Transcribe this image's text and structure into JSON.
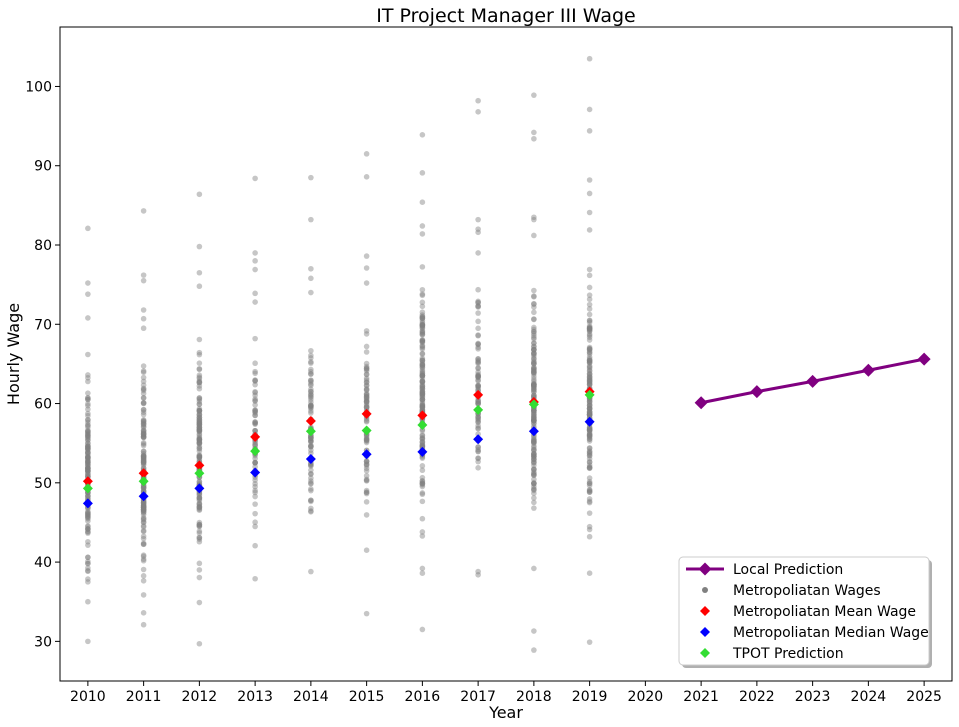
{
  "chart_data": {
    "type": "scatter",
    "title": "IT Project Manager III Wage",
    "xlabel": "Year",
    "ylabel": "Hourly Wage",
    "xlim": [
      2009.5,
      2025.5
    ],
    "ylim": [
      25,
      107.5
    ],
    "x_ticks": [
      2010,
      2011,
      2012,
      2013,
      2014,
      2015,
      2016,
      2017,
      2018,
      2019,
      2020,
      2021,
      2022,
      2023,
      2024,
      2025
    ],
    "y_ticks": [
      30,
      40,
      50,
      60,
      70,
      80,
      90,
      100
    ],
    "grid": false,
    "legend_position": "bottom-right",
    "colors": {
      "wages": "#808080",
      "mean": "#ff0000",
      "median": "#0000ff",
      "tpot": "#33dd33",
      "prediction": "#800080"
    },
    "series": [
      {
        "name": "Local Prediction",
        "style": "line-diamond",
        "x": [
          2021,
          2022,
          2023,
          2024,
          2025
        ],
        "y": [
          60.1,
          61.5,
          62.8,
          64.2,
          65.6
        ]
      },
      {
        "name": "Metropoliatan Wages",
        "style": "scatter-gray",
        "groups": [
          {
            "year": 2010,
            "min": 33.5,
            "max": 68.0,
            "count": 150,
            "outliers": [
              30.0,
              35.0,
              70.8,
              73.8,
              75.2,
              82.1
            ]
          },
          {
            "year": 2011,
            "min": 35.0,
            "max": 68.0,
            "count": 150,
            "outliers": [
              32.1,
              33.6,
              69.5,
              70.7,
              71.8,
              75.5,
              76.2,
              84.3
            ]
          },
          {
            "year": 2012,
            "min": 35.5,
            "max": 72.0,
            "count": 150,
            "outliers": [
              29.7,
              34.9,
              74.8,
              76.5,
              79.8,
              86.4
            ]
          },
          {
            "year": 2013,
            "min": 40.0,
            "max": 71.0,
            "count": 70,
            "outliers": [
              37.9,
              72.8,
              73.9,
              76.9,
              78.0,
              79.0,
              88.4
            ]
          },
          {
            "year": 2014,
            "min": 42.0,
            "max": 72.0,
            "count": 80,
            "outliers": [
              38.8,
              74.0,
              75.8,
              77.0,
              83.2,
              88.5
            ]
          },
          {
            "year": 2015,
            "min": 43.0,
            "max": 73.0,
            "count": 80,
            "outliers": [
              33.5,
              41.5,
              75.2,
              77.1,
              78.6,
              88.6,
              91.5
            ]
          },
          {
            "year": 2016,
            "min": 40.0,
            "max": 80.0,
            "count": 170,
            "outliers": [
              31.5,
              38.6,
              39.2,
              81.4,
              82.4,
              85.4,
              89.1,
              93.9
            ]
          },
          {
            "year": 2017,
            "min": 44.5,
            "max": 77.0,
            "count": 80,
            "outliers": [
              38.4,
              38.8,
              79.0,
              81.6,
              82.0,
              83.2,
              96.8,
              98.2
            ]
          },
          {
            "year": 2018,
            "min": 40.0,
            "max": 80.0,
            "count": 170,
            "outliers": [
              28.9,
              31.3,
              39.2,
              81.2,
              83.2,
              83.5,
              93.4,
              94.2,
              98.9
            ]
          },
          {
            "year": 2019,
            "min": 40.0,
            "max": 80.0,
            "count": 170,
            "outliers": [
              29.9,
              38.6,
              81.9,
              84.1,
              86.5,
              88.2,
              94.4,
              97.1,
              103.5
            ]
          }
        ]
      },
      {
        "name": "Metropoliatan Mean Wage",
        "style": "diamond-red",
        "x": [
          2010,
          2011,
          2012,
          2013,
          2014,
          2015,
          2016,
          2017,
          2018,
          2019
        ],
        "y": [
          50.2,
          51.2,
          52.2,
          55.8,
          57.8,
          58.7,
          58.5,
          61.1,
          60.2,
          61.5
        ]
      },
      {
        "name": "Metropoliatan Median Wage",
        "style": "diamond-blue",
        "x": [
          2010,
          2011,
          2012,
          2013,
          2014,
          2015,
          2016,
          2017,
          2018,
          2019
        ],
        "y": [
          47.4,
          48.3,
          49.3,
          51.3,
          53.0,
          53.6,
          53.9,
          55.5,
          56.5,
          57.7
        ]
      },
      {
        "name": "TPOT Prediction",
        "style": "diamond-green",
        "x": [
          2010,
          2011,
          2012,
          2013,
          2014,
          2015,
          2016,
          2017,
          2018,
          2019
        ],
        "y": [
          49.3,
          50.2,
          51.2,
          54.0,
          56.5,
          56.6,
          57.3,
          59.2,
          59.9,
          61.1
        ]
      }
    ]
  }
}
